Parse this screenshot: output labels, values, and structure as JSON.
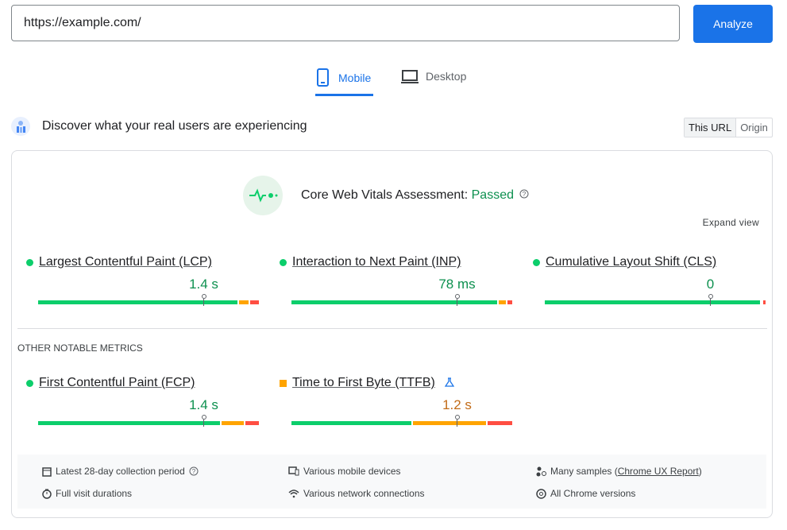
{
  "url_input": "https://example.com/",
  "analyze_button": "Analyze",
  "tabs": [
    "Mobile",
    "Desktop"
  ],
  "section": {
    "title": "Discover what your real users are experiencing",
    "toggle": [
      "This URL",
      "Origin"
    ]
  },
  "assessment": {
    "label": "Core Web Vitals Assessment:",
    "status": "Passed",
    "expand": "Expand view"
  },
  "core_metrics": [
    {
      "name": "Largest Contentful Paint (LCP)",
      "value": "1.4 s",
      "status": "good",
      "distribution": [
        91,
        5,
        4
      ]
    },
    {
      "name": "Interaction to Next Paint (INP)",
      "value": "78 ms",
      "status": "good",
      "distribution": [
        94,
        4,
        2
      ]
    },
    {
      "name": "Cumulative Layout Shift (CLS)",
      "value": "0",
      "status": "good",
      "distribution": [
        99,
        0,
        1
      ]
    }
  ],
  "other_heading": "OTHER NOTABLE METRICS",
  "other_metrics": [
    {
      "name": "First Contentful Paint (FCP)",
      "value": "1.4 s",
      "status": "good",
      "distribution": [
        83,
        11,
        6
      ]
    },
    {
      "name": "Time to First Byte (TTFB)",
      "value": "1.2 s",
      "status": "needs-improvement",
      "experimental": true,
      "distribution": [
        55,
        34,
        11
      ]
    }
  ],
  "footer": {
    "collection_period": "Latest 28-day collection period",
    "devices": "Various mobile devices",
    "samples": {
      "text": "Many samples (",
      "link": "Chrome UX Report",
      "suffix": ")"
    },
    "durations": "Full visit durations",
    "network": "Various network connections",
    "versions": "All Chrome versions"
  }
}
